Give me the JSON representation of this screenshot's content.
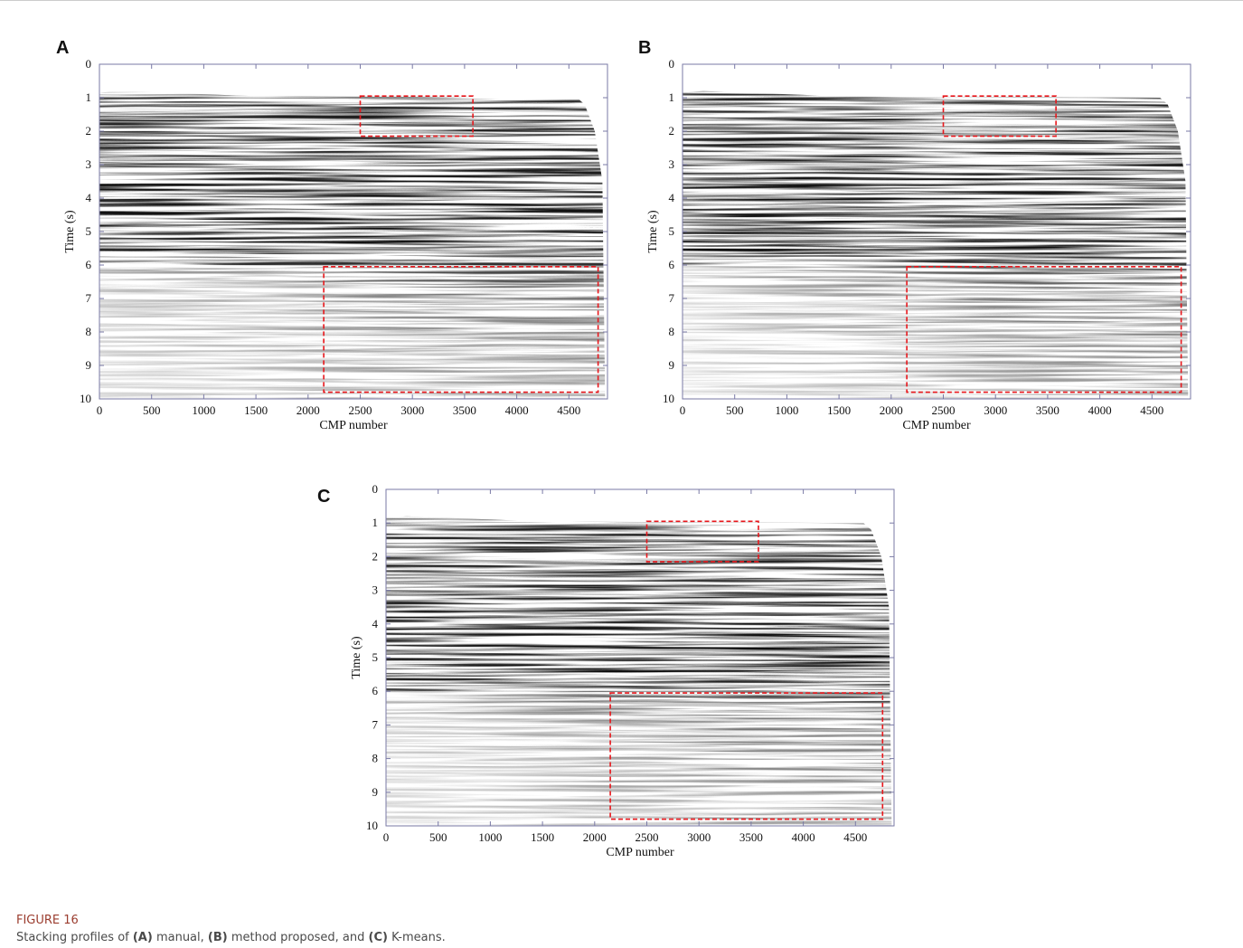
{
  "chart_data": [
    {
      "type": "seismic",
      "panel_label": "A",
      "xlabel": "CMP number",
      "ylabel": "Time (s)",
      "xlim": [
        0,
        4870
      ],
      "ylim": [
        0,
        10
      ],
      "y_inverted": true,
      "xticks": [
        0,
        500,
        1000,
        1500,
        2000,
        2500,
        3000,
        3500,
        4000,
        4500
      ],
      "yticks": [
        0,
        1,
        2,
        3,
        4,
        5,
        6,
        7,
        8,
        9,
        10
      ],
      "region_color": "#e8161b",
      "highlight_regions": [
        {
          "x": [
            2500,
            3580
          ],
          "y": [
            0.95,
            2.15
          ]
        },
        {
          "x": [
            2150,
            4780
          ],
          "y": [
            6.05,
            9.8
          ]
        }
      ]
    },
    {
      "type": "seismic",
      "panel_label": "B",
      "xlabel": "CMP number",
      "ylabel": "Time (s)",
      "xlim": [
        0,
        4870
      ],
      "ylim": [
        0,
        10
      ],
      "y_inverted": true,
      "xticks": [
        0,
        500,
        1000,
        1500,
        2000,
        2500,
        3000,
        3500,
        4000,
        4500
      ],
      "yticks": [
        0,
        1,
        2,
        3,
        4,
        5,
        6,
        7,
        8,
        9,
        10
      ],
      "region_color": "#e8161b",
      "highlight_regions": [
        {
          "x": [
            2500,
            3580
          ],
          "y": [
            0.95,
            2.15
          ]
        },
        {
          "x": [
            2150,
            4780
          ],
          "y": [
            6.05,
            9.8
          ]
        }
      ]
    },
    {
      "type": "seismic",
      "panel_label": "C",
      "xlabel": "CMP number",
      "ylabel": "Time (s)",
      "xlim": [
        0,
        4870
      ],
      "ylim": [
        0,
        10
      ],
      "y_inverted": true,
      "xticks": [
        0,
        500,
        1000,
        1500,
        2000,
        2500,
        3000,
        3500,
        4000,
        4500
      ],
      "yticks": [
        0,
        1,
        2,
        3,
        4,
        5,
        6,
        7,
        8,
        9,
        10
      ],
      "region_color": "#e8161b",
      "highlight_regions": [
        {
          "x": [
            2500,
            3570
          ],
          "y": [
            0.95,
            2.15
          ]
        },
        {
          "x": [
            2150,
            4760
          ],
          "y": [
            6.05,
            9.8
          ]
        }
      ]
    }
  ],
  "caption": {
    "label": "FIGURE 16",
    "parts": [
      {
        "text": "Stacking profiles of "
      },
      {
        "text": "(A)",
        "bold": true
      },
      {
        "text": " manual, "
      },
      {
        "text": "(B)",
        "bold": true
      },
      {
        "text": " method proposed, and "
      },
      {
        "text": "(C)",
        "bold": true
      },
      {
        "text": " K-means."
      }
    ]
  }
}
